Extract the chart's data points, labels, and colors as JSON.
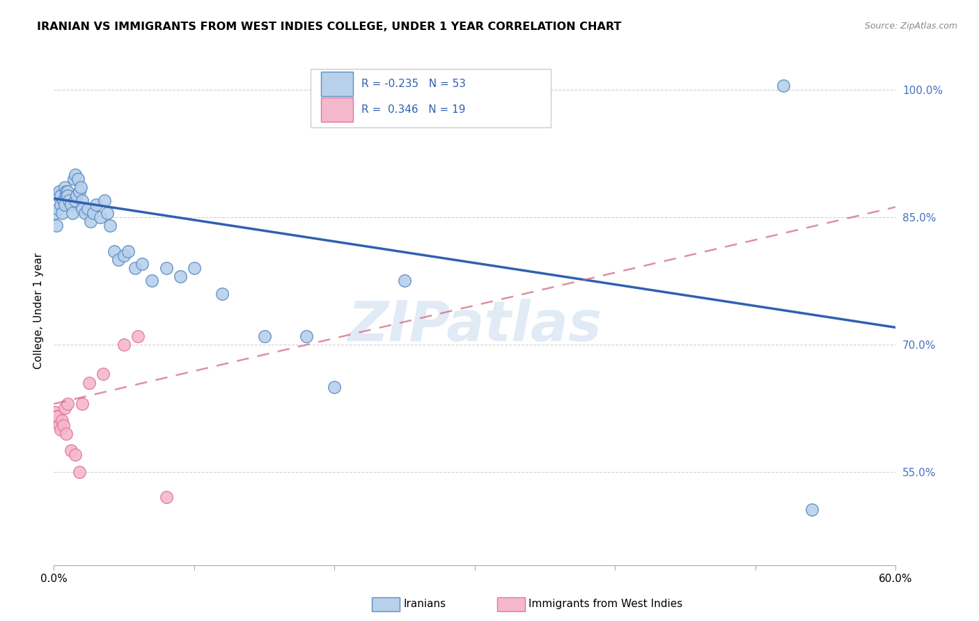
{
  "title": "IRANIAN VS IMMIGRANTS FROM WEST INDIES COLLEGE, UNDER 1 YEAR CORRELATION CHART",
  "source": "Source: ZipAtlas.com",
  "ylabel": "College, Under 1 year",
  "xlim": [
    0.0,
    0.6
  ],
  "ylim": [
    0.44,
    1.04
  ],
  "yticks": [
    0.55,
    0.7,
    0.85,
    1.0
  ],
  "ytick_labels": [
    "55.0%",
    "70.0%",
    "85.0%",
    "100.0%"
  ],
  "xticks": [
    0.0,
    0.1,
    0.2,
    0.3,
    0.4,
    0.5,
    0.6
  ],
  "xtick_labels": [
    "0.0%",
    "",
    "",
    "",
    "",
    "",
    "60.0%"
  ],
  "blue_r": -0.235,
  "blue_n": 53,
  "pink_r": 0.346,
  "pink_n": 19,
  "blue_fill": "#b8d0eb",
  "pink_fill": "#f5b8cc",
  "blue_edge": "#5b8ec4",
  "pink_edge": "#e07898",
  "blue_line_color": "#3060b0",
  "pink_line_color": "#d06080",
  "watermark": "ZIPatlas",
  "blue_line_x0": 0.0,
  "blue_line_y0": 0.872,
  "blue_line_x1": 0.6,
  "blue_line_y1": 0.72,
  "pink_line_x0": 0.0,
  "pink_line_y0": 0.63,
  "pink_line_x1": 0.6,
  "pink_line_y1": 0.862,
  "blue_points_x": [
    0.001,
    0.002,
    0.003,
    0.003,
    0.004,
    0.005,
    0.005,
    0.006,
    0.007,
    0.008,
    0.008,
    0.009,
    0.009,
    0.01,
    0.01,
    0.011,
    0.012,
    0.013,
    0.014,
    0.015,
    0.015,
    0.016,
    0.017,
    0.018,
    0.019,
    0.02,
    0.02,
    0.022,
    0.024,
    0.026,
    0.028,
    0.03,
    0.033,
    0.036,
    0.038,
    0.04,
    0.043,
    0.046,
    0.05,
    0.053,
    0.058,
    0.063,
    0.07,
    0.08,
    0.09,
    0.1,
    0.12,
    0.15,
    0.18,
    0.2,
    0.25,
    0.52,
    0.54
  ],
  "blue_points_y": [
    0.855,
    0.84,
    0.86,
    0.875,
    0.88,
    0.865,
    0.875,
    0.855,
    0.87,
    0.885,
    0.865,
    0.88,
    0.875,
    0.88,
    0.875,
    0.87,
    0.865,
    0.855,
    0.895,
    0.87,
    0.9,
    0.875,
    0.895,
    0.88,
    0.885,
    0.87,
    0.86,
    0.855,
    0.86,
    0.845,
    0.855,
    0.865,
    0.85,
    0.87,
    0.855,
    0.84,
    0.81,
    0.8,
    0.805,
    0.81,
    0.79,
    0.795,
    0.775,
    0.79,
    0.78,
    0.79,
    0.76,
    0.71,
    0.71,
    0.65,
    0.775,
    1.005,
    0.505
  ],
  "pink_points_x": [
    0.001,
    0.002,
    0.003,
    0.004,
    0.005,
    0.006,
    0.007,
    0.008,
    0.009,
    0.01,
    0.012,
    0.015,
    0.018,
    0.02,
    0.025,
    0.035,
    0.05,
    0.06,
    0.08
  ],
  "pink_points_y": [
    0.62,
    0.615,
    0.615,
    0.605,
    0.6,
    0.61,
    0.605,
    0.625,
    0.595,
    0.63,
    0.575,
    0.57,
    0.55,
    0.63,
    0.655,
    0.665,
    0.7,
    0.71,
    0.52
  ]
}
